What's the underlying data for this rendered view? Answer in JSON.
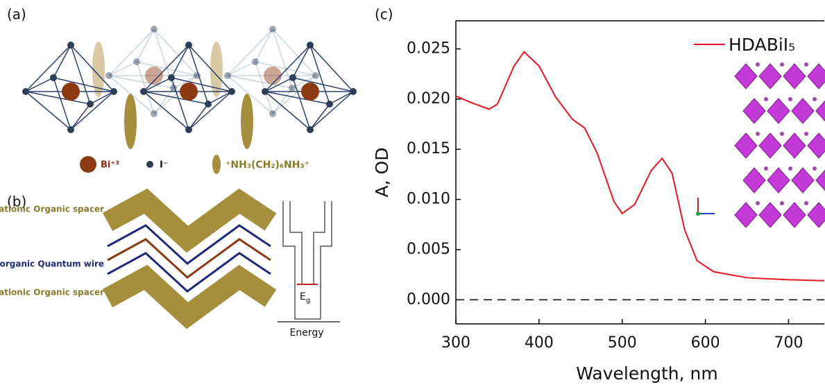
{
  "panel_a": {
    "label": "(a)",
    "legend": [
      "Bi⁺³",
      "I⁻",
      "⁺NH₃(CH₂)₆NH₃⁺"
    ]
  },
  "panel_b": {
    "label": "(b)",
    "labels": [
      "Cationic Organic spacer",
      "Inorganic Quantum wire",
      "Cationic Organic spacer"
    ],
    "gap": {
      "main": "E",
      "sub": "g"
    },
    "axis": "Energy"
  },
  "panel_c": {
    "label": "(c)"
  },
  "chart_data": {
    "type": "line",
    "xlabel": "Wavelength, nm",
    "ylabel": "A, OD",
    "x": [
      300,
      320,
      340,
      350,
      370,
      382,
      400,
      420,
      440,
      455,
      470,
      490,
      500,
      515,
      535,
      548,
      560,
      575,
      590,
      610,
      650,
      700,
      743
    ],
    "series": [
      {
        "name": "HDABiI₅",
        "color": "#e8141c",
        "values": [
          0.0203,
          0.0196,
          0.019,
          0.0195,
          0.0233,
          0.0247,
          0.0233,
          0.0202,
          0.018,
          0.0171,
          0.0146,
          0.0098,
          0.0086,
          0.0095,
          0.0129,
          0.0141,
          0.0126,
          0.007,
          0.0039,
          0.0028,
          0.0022,
          0.002,
          0.0019
        ]
      }
    ],
    "xlim": [
      300,
      743
    ],
    "ylim": [
      -0.0024,
      0.0278
    ],
    "xticks": [
      300,
      400,
      500,
      600,
      700
    ],
    "yticks": [
      {
        "value": 0,
        "label": "0.000"
      },
      {
        "value": 0.005,
        "label": "0.005"
      },
      {
        "value": 0.01,
        "label": "0.010"
      },
      {
        "value": 0.015,
        "label": "0.015"
      },
      {
        "value": 0.02,
        "label": "0.020"
      },
      {
        "value": 0.025,
        "label": "0.025"
      }
    ],
    "reference_line": 0,
    "legend": "upper right"
  }
}
